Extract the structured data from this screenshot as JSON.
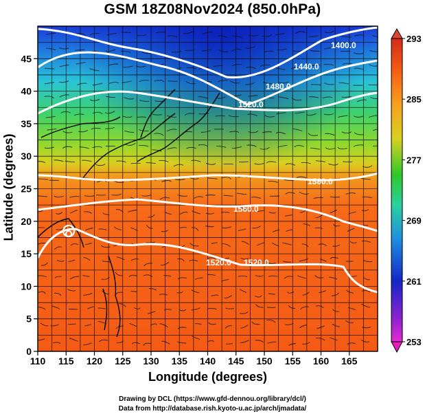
{
  "title": "GSM 18Z08Nov2024 (850.0hPa)",
  "xlabel": "Longitude (degrees)",
  "ylabel": "Latitude  (degrees)",
  "x_ticks": [
    "110",
    "115",
    "120",
    "125",
    "130",
    "135",
    "140",
    "145",
    "150",
    "155",
    "160",
    "165"
  ],
  "y_ticks": [
    "0",
    "5",
    "10",
    "15",
    "20",
    "25",
    "30",
    "35",
    "40",
    "45"
  ],
  "colorbar_ticks": [
    "293",
    "285",
    "277",
    "269",
    "261",
    "253"
  ],
  "contour_labels": [
    "1400.0",
    "1440.0",
    "1480.0",
    "1520.0",
    "1560.0",
    "1560.0",
    "1520.0",
    "1520.0"
  ],
  "credits": {
    "line1": "Drawing by DCL (https://www.gfd-dennou.org/library/dcl/)",
    "line2": "Data from http://database.rish.kyoto-u.ac.jp/arch/jmadata/"
  },
  "map": {
    "lon_range": [
      110,
      170
    ],
    "lat_range": [
      0,
      50
    ],
    "field": "temperature (K) shaded, geopotential height contours, streamlines",
    "colorbar_range": [
      253,
      293
    ]
  }
}
